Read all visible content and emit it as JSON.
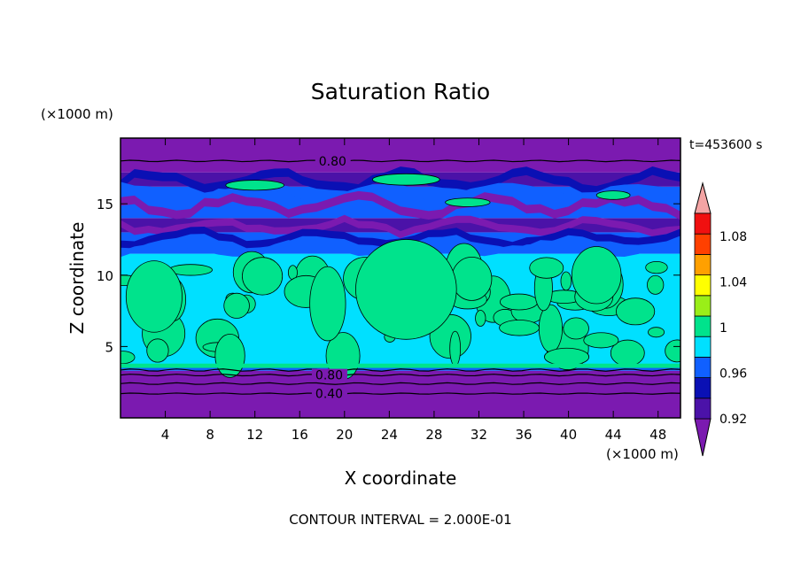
{
  "chart_data": {
    "type": "heatmap",
    "title": "Saturation Ratio",
    "xlabel": "X coordinate",
    "ylabel": "Z coordinate",
    "x_unit": "(×1000 m)",
    "y_unit": "(×1000 m)",
    "time_label": "t=453600 s",
    "footer": "CONTOUR INTERVAL = 2.000E-01",
    "xlim": [
      0,
      50
    ],
    "ylim": [
      0,
      19.6
    ],
    "x_ticks": [
      4,
      8,
      12,
      16,
      20,
      24,
      28,
      32,
      36,
      40,
      44,
      48
    ],
    "y_ticks": [
      5,
      10,
      15
    ],
    "contour_labels": [
      {
        "text": "0.80",
        "x": 17.7,
        "z": 18.0
      },
      {
        "text": "0.80",
        "x": 17.4,
        "z": 3.0
      },
      {
        "text": "0.40",
        "x": 17.4,
        "z": 1.7
      }
    ],
    "colorbar": {
      "levels": [
        0.92,
        0.94,
        0.96,
        0.98,
        1.0,
        1.02,
        1.04,
        1.06,
        1.08,
        1.1
      ],
      "tick_labels": [
        "0.92",
        "0.96",
        "1",
        "1.04",
        "1.08"
      ],
      "tick_values": [
        0.92,
        0.96,
        1.0,
        1.04,
        1.08
      ],
      "under_color": "#7b1ab0",
      "over_color": "#f4a4a4",
      "colors": [
        "#4b12a8",
        "#0a10b4",
        "#1060ff",
        "#00e0ff",
        "#00e38c",
        "#9aee18",
        "#ffff00",
        "#ffa000",
        "#ff4000",
        "#f01010"
      ]
    },
    "field": {
      "description_levels": "category index per band",
      "bands": [
        {
          "z": [
            0.0,
            3.3
          ],
          "value": "under"
        },
        {
          "z": [
            3.3,
            3.6
          ],
          "value": 0.97
        },
        {
          "z": [
            3.6,
            11.5
          ],
          "value": 0.99
        },
        {
          "z": [
            11.5,
            13.0
          ],
          "value": 0.97
        },
        {
          "z": [
            13.0,
            14.0
          ],
          "value": 0.93
        },
        {
          "z": [
            14.0,
            16.2
          ],
          "value": 0.97
        },
        {
          "z": [
            16.2,
            17.2
          ],
          "value": 0.93
        },
        {
          "z": [
            17.2,
            19.6
          ],
          "value": "under"
        }
      ]
    }
  }
}
